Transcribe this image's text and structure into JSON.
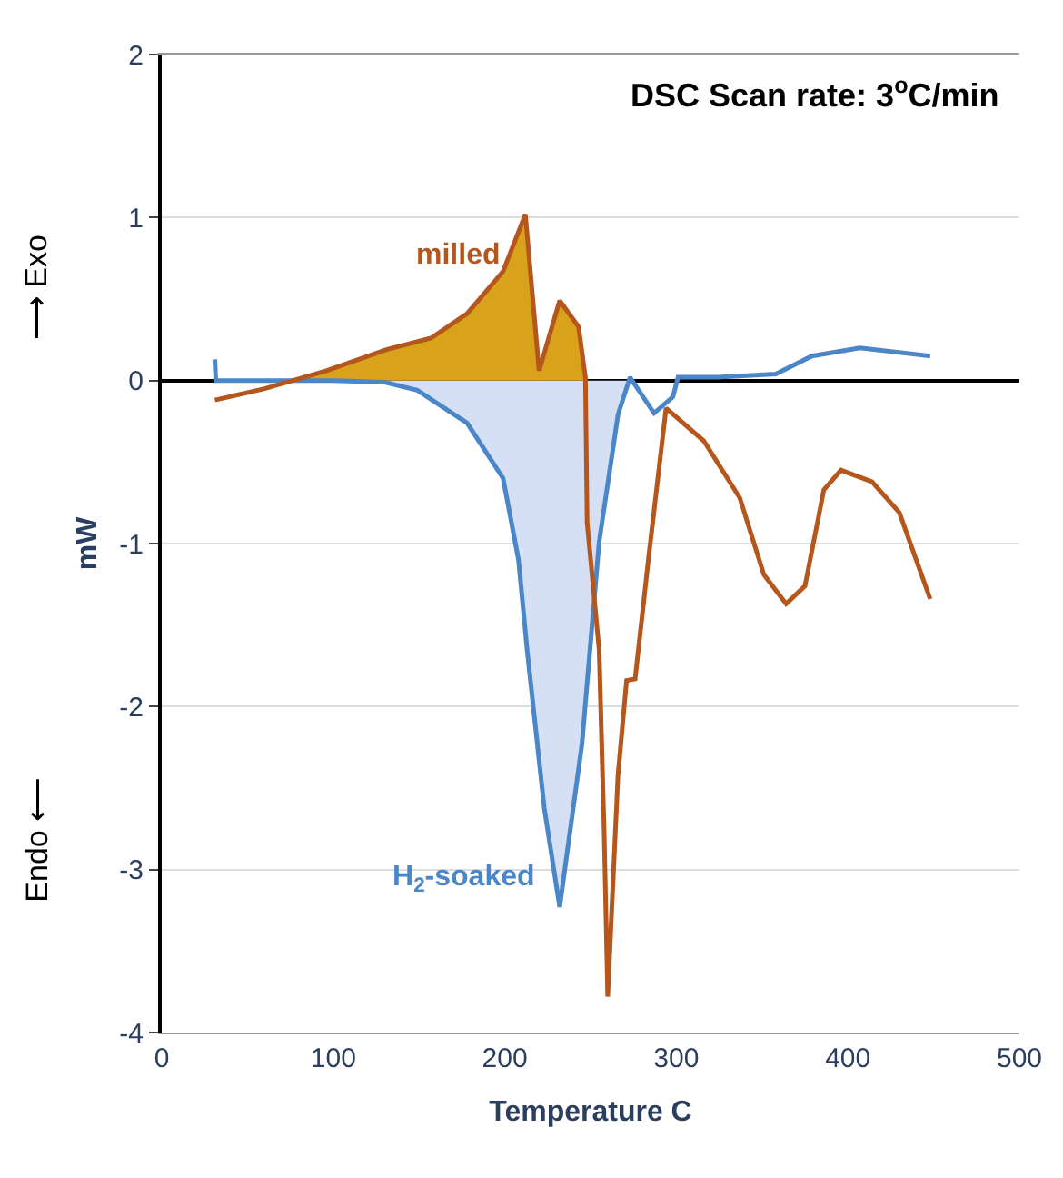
{
  "chart_data": {
    "type": "line",
    "title": "DSC Scan rate: 3$^{o}$C/min",
    "xlabel": "Temperature C",
    "ylabel": "mW",
    "annotations": [
      "⟶ Exo",
      "Endo ⟵"
    ],
    "xlim": [
      0,
      500
    ],
    "xticks": [
      0,
      100,
      200,
      300,
      400,
      500
    ],
    "ylim": [
      -4,
      2
    ],
    "yticks": [
      -4,
      -3,
      -2,
      -1,
      0,
      1,
      2
    ],
    "grid": "y",
    "marker": "none",
    "line_style": "solid",
    "series": [
      {
        "type": "area",
        "color": "#d6e0f5",
        "x": [
          130,
          149,
          178,
          199,
          208,
          213,
          223,
          232,
          245,
          255,
          266,
          273
        ],
        "values": [
          -0.01,
          -0.06,
          -0.26,
          -0.6,
          -1.1,
          -1.65,
          -2.62,
          -3.23,
          -2.23,
          -0.99,
          -0.21,
          0.02
        ]
      },
      {
        "type": "area",
        "color": "#d9a21b",
        "x": [
          80,
          96,
          131,
          157,
          178,
          199,
          212,
          220,
          232,
          243,
          247
        ],
        "values": [
          0,
          0.06,
          0.19,
          0.26,
          0.41,
          0.67,
          1.02,
          0.06,
          0.49,
          0.33,
          0.02
        ]
      },
      {
        "name": "H$_{2}$-soaked",
        "color": "#4a86c8",
        "x": [
          31,
          31.5,
          33,
          60,
          100,
          130,
          149,
          178,
          199,
          208,
          213,
          223,
          232,
          245,
          255,
          266,
          273,
          287,
          298,
          301,
          324,
          358,
          379,
          407,
          448
        ],
        "values": [
          0.13,
          0,
          0,
          0,
          0,
          -0.01,
          -0.06,
          -0.26,
          -0.6,
          -1.1,
          -1.65,
          -2.62,
          -3.23,
          -2.23,
          -0.99,
          -0.21,
          0.02,
          -0.2,
          -0.1,
          0.02,
          0.02,
          0.04,
          0.15,
          0.2,
          0.15
        ]
      },
      {
        "name": "milled",
        "color": "#b5561c",
        "x": [
          31,
          60,
          96,
          131,
          157,
          178,
          199,
          212,
          220,
          232,
          243,
          247,
          248,
          255,
          258,
          260,
          266,
          271,
          276,
          284,
          294,
          316,
          337,
          351,
          364,
          375,
          386,
          396,
          414,
          430,
          448
        ],
        "values": [
          -0.12,
          -0.05,
          0.06,
          0.19,
          0.26,
          0.41,
          0.67,
          1.02,
          0.06,
          0.49,
          0.33,
          0.02,
          -0.87,
          -1.65,
          -2.8,
          -3.78,
          -2.42,
          -1.84,
          -1.83,
          -1.07,
          -0.17,
          -0.37,
          -0.72,
          -1.19,
          -1.37,
          -1.26,
          -0.67,
          -0.55,
          -0.62,
          -0.81,
          -1.34
        ]
      }
    ]
  }
}
